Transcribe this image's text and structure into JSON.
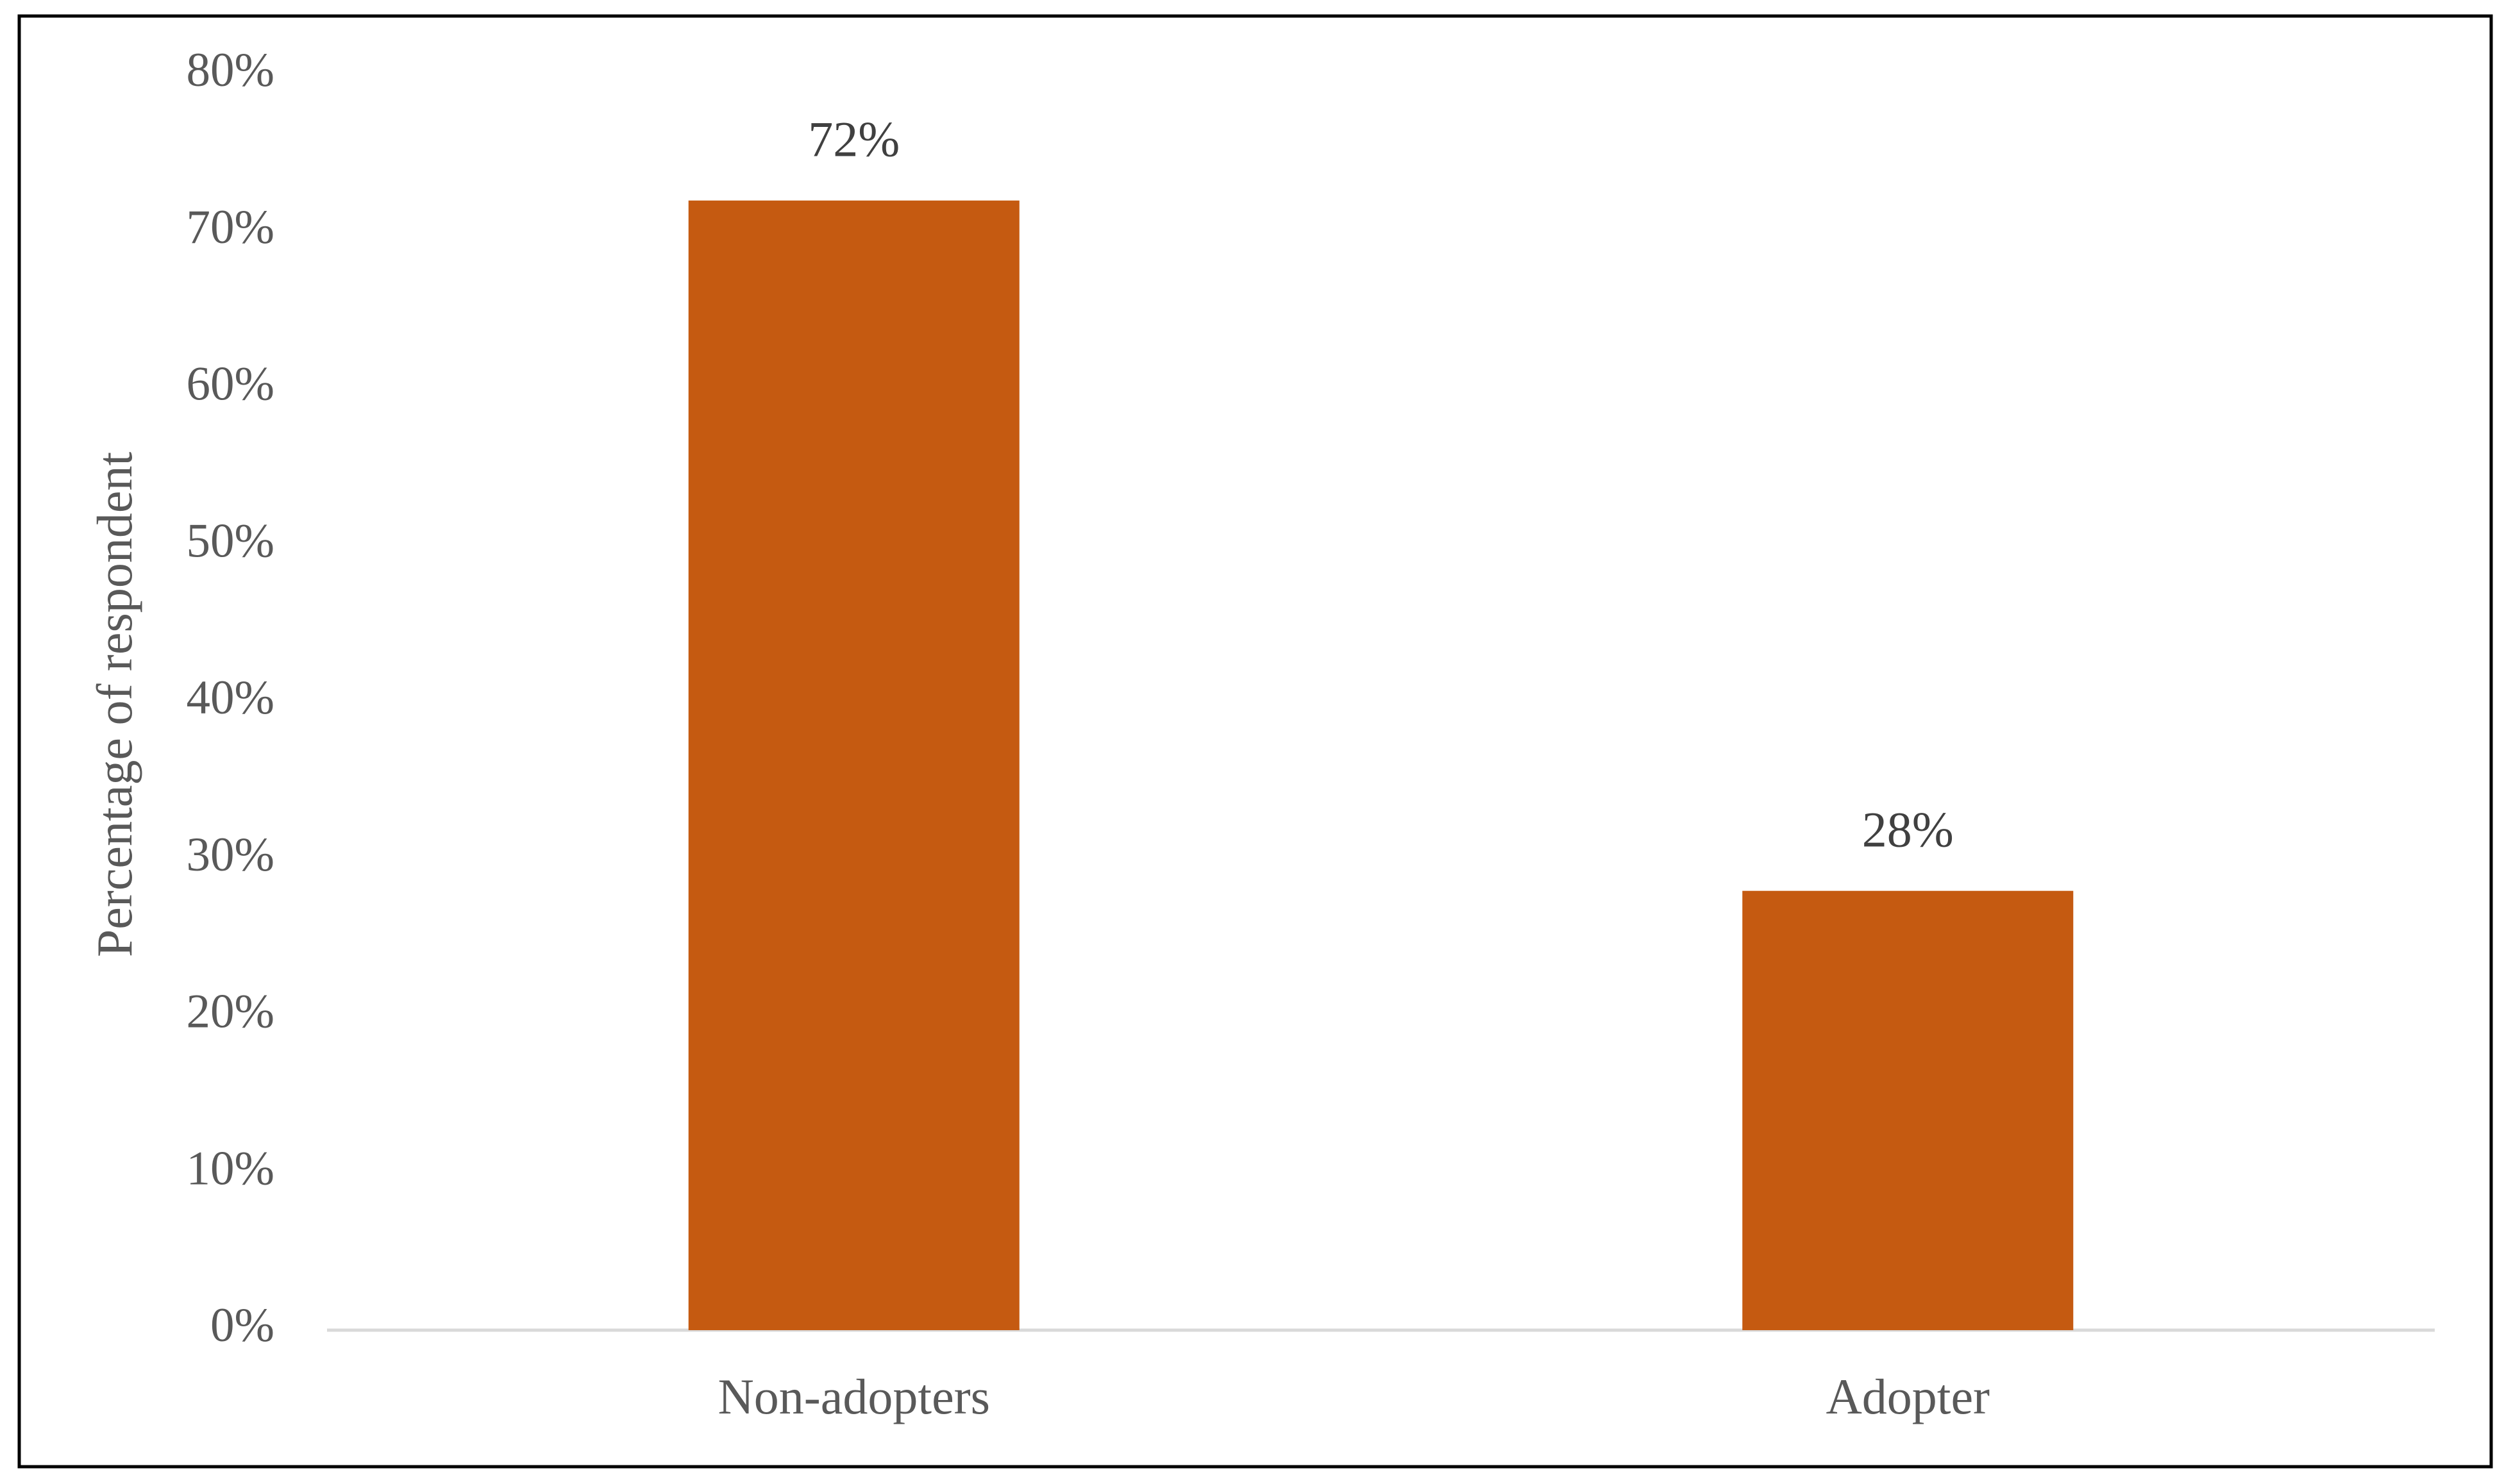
{
  "chart_data": {
    "type": "bar",
    "y_axis_label": "Percentage of respondent",
    "categories": [
      "Non-adopters",
      "Adopter"
    ],
    "values": [
      72,
      28
    ],
    "value_labels": [
      "72%",
      "28%"
    ],
    "color": "#c55a11",
    "ylim": [
      0,
      80
    ],
    "yticks": [
      {
        "value": 0,
        "label": "0%"
      },
      {
        "value": 10,
        "label": "10%"
      },
      {
        "value": 20,
        "label": "20%"
      },
      {
        "value": 30,
        "label": "30%"
      },
      {
        "value": 40,
        "label": "40%"
      },
      {
        "value": 50,
        "label": "50%"
      },
      {
        "value": 60,
        "label": "60%"
      },
      {
        "value": 70,
        "label": "70%"
      },
      {
        "value": 80,
        "label": "80%"
      }
    ],
    "grid": false
  }
}
